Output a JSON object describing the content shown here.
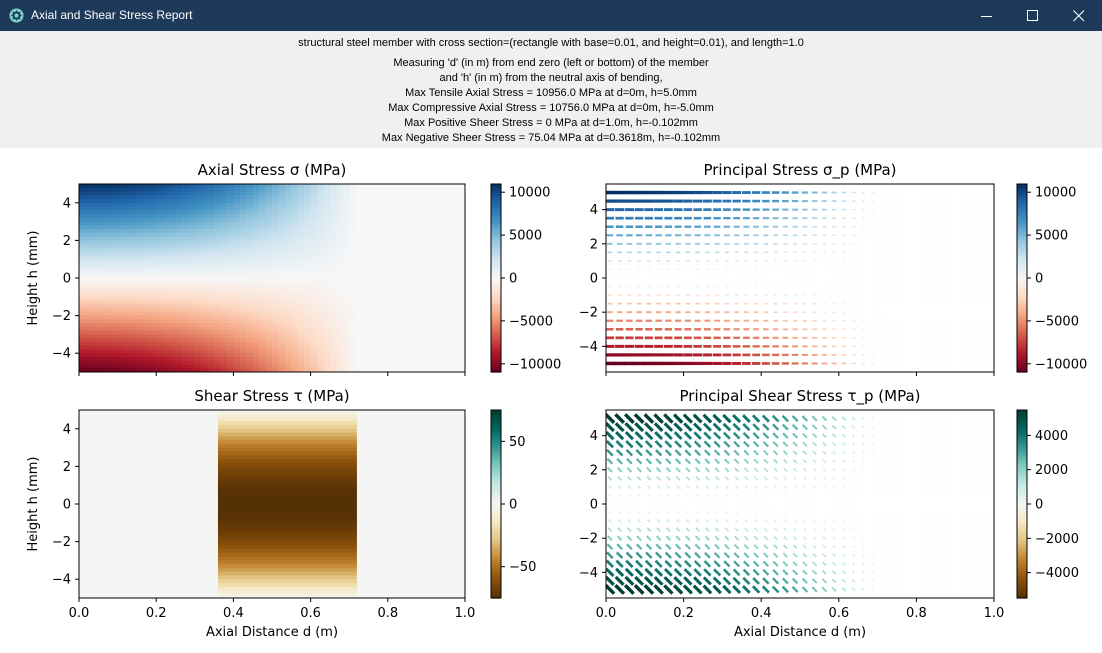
{
  "window": {
    "title": "Axial and Shear Stress Report",
    "controls": [
      "minimize",
      "maximize",
      "close"
    ]
  },
  "header": {
    "lines": [
      "structural steel member with cross section=(rectangle with base=0.01, and height=0.01), and length=1.0",
      "Measuring 'd' (in m) from end zero (left or bottom) of the member",
      "and 'h' (in m) from the neutral axis of bending,",
      "Max Tensile Axial Stress = 10956.0 MPa at d=0m, h=5.0mm",
      "Max Compressive Axial Stress = 10756.0 MPa at d=0m, h=-5.0mm",
      "Max Positive Sheer Stress = 0 MPa at d=1.0m, h=-0.102mm",
      "Max Negative Sheer Stress = 75.04 MPa at d=0.3618m, h=-0.102mm"
    ]
  },
  "colors": {
    "titlebar": "#1e3a5a",
    "header_bg": "#f0f0f0",
    "rdbu": [
      "#67001f",
      "#b2182b",
      "#d6604d",
      "#f4a582",
      "#fddbc7",
      "#f7f7f7",
      "#d1e5f0",
      "#92c5de",
      "#4393c3",
      "#2166ac",
      "#053061"
    ],
    "brbg": [
      "#543005",
      "#8c510a",
      "#bf812d",
      "#dfc27d",
      "#f6e8c3",
      "#f5f5f5",
      "#c7eae5",
      "#80cdc1",
      "#35978f",
      "#01665e",
      "#003c30"
    ]
  },
  "chart_data": [
    {
      "type": "heatmap",
      "title": "Axial Stress σ (MPa)",
      "xlabel": "",
      "ylabel": "Height h (mm)",
      "xlim": [
        0,
        1.0
      ],
      "ylim": [
        -5,
        5
      ],
      "yticks": [
        "−4",
        "−2",
        "0",
        "2",
        "4"
      ],
      "xticks": [],
      "colorbar": {
        "min": -10956,
        "max": 10956,
        "ticks": [
          "10000",
          "5000",
          "0",
          "−5000",
          "−10000"
        ],
        "colormap": "RdBu"
      }
    },
    {
      "type": "scatter",
      "title": "Principal Stress σ_p (MPa)",
      "xlabel": "",
      "ylabel": "",
      "xlim": [
        0,
        1.0
      ],
      "ylim": [
        -5.5,
        5.5
      ],
      "yticks": [
        "−4",
        "−2",
        "0",
        "2",
        "4"
      ],
      "xticks": [],
      "colorbar": {
        "min": -10956,
        "max": 10956,
        "ticks": [
          "10000",
          "5000",
          "0",
          "−5000",
          "−10000"
        ],
        "colormap": "RdBu"
      }
    },
    {
      "type": "heatmap",
      "title": "Shear Stress τ (MPa)",
      "xlabel": "Axial Distance d (m)",
      "ylabel": "Height h (mm)",
      "xlim": [
        0,
        1.0
      ],
      "ylim": [
        -5,
        5
      ],
      "yticks": [
        "−4",
        "−2",
        "0",
        "2",
        "4"
      ],
      "xticks": [
        "0.0",
        "0.2",
        "0.4",
        "0.6",
        "0.8",
        "1.0"
      ],
      "nonzero_band_d": [
        0.36,
        0.72
      ],
      "colorbar": {
        "min": -75,
        "max": 75,
        "ticks": [
          "50",
          "0",
          "−50"
        ],
        "colormap": "BrBG"
      }
    },
    {
      "type": "scatter",
      "title": "Principal Shear Stress τ_p (MPa)",
      "xlabel": "Axial Distance d (m)",
      "ylabel": "",
      "xlim": [
        0,
        1.0
      ],
      "ylim": [
        -5.5,
        5.5
      ],
      "yticks": [
        "−4",
        "−2",
        "0",
        "2",
        "4"
      ],
      "xticks": [
        "0.0",
        "0.2",
        "0.4",
        "0.6",
        "0.8",
        "1.0"
      ],
      "colorbar": {
        "min": -5478,
        "max": 5478,
        "ticks": [
          "4000",
          "2000",
          "0",
          "−2000",
          "−4000"
        ],
        "colormap": "BrBG"
      }
    }
  ]
}
